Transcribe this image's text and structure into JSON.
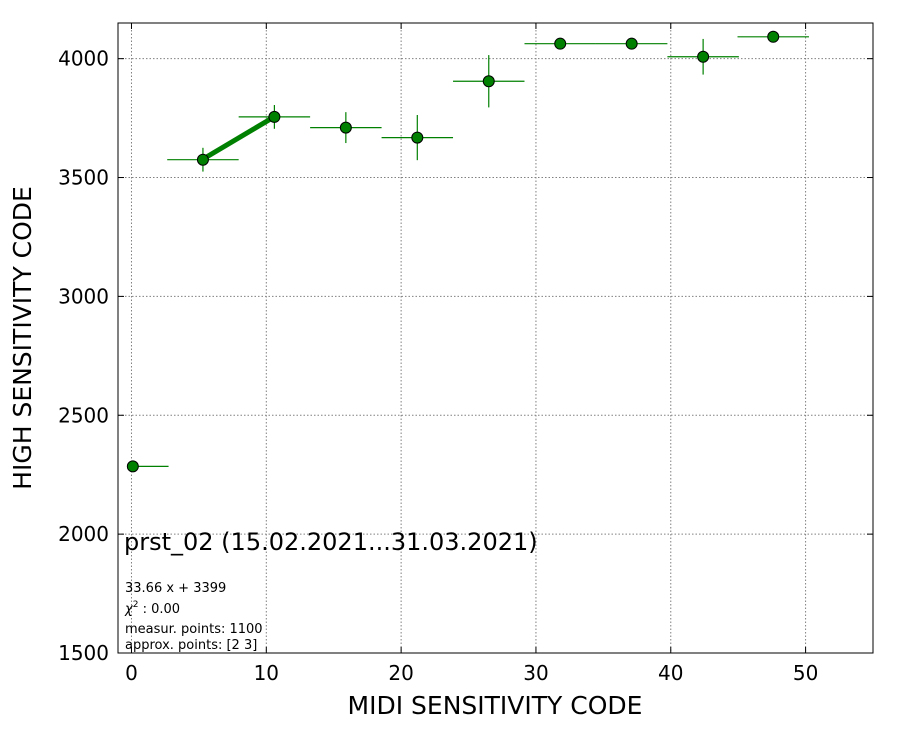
{
  "chart_data": {
    "type": "scatter",
    "xlabel": "MIDI SENSITIVITY CODE",
    "ylabel": "HIGH SENSITIVITY CODE",
    "xlim": [
      -1,
      55
    ],
    "ylim": [
      1500,
      4150
    ],
    "xticks": [
      0,
      10,
      20,
      30,
      40,
      50
    ],
    "yticks": [
      1500,
      2000,
      2500,
      3000,
      3500,
      4000
    ],
    "grid": true,
    "points": [
      {
        "x": 0.1,
        "y": 2285,
        "xerr_left": 0,
        "xerr_right": 2.65,
        "yerr": 0
      },
      {
        "x": 5.3,
        "y": 3575,
        "xerr_left": 2.65,
        "xerr_right": 2.65,
        "yerr": 50
      },
      {
        "x": 10.6,
        "y": 3755,
        "xerr_left": 2.65,
        "xerr_right": 2.65,
        "yerr": 50
      },
      {
        "x": 15.9,
        "y": 3710,
        "xerr_left": 2.65,
        "xerr_right": 2.65,
        "yerr": 65
      },
      {
        "x": 21.2,
        "y": 3668,
        "xerr_left": 2.65,
        "xerr_right": 2.65,
        "yerr": 95
      },
      {
        "x": 26.5,
        "y": 3905,
        "xerr_left": 2.65,
        "xerr_right": 2.65,
        "yerr": 110
      },
      {
        "x": 31.8,
        "y": 4063,
        "xerr_left": 2.65,
        "xerr_right": 2.65,
        "yerr": 0
      },
      {
        "x": 37.1,
        "y": 4063,
        "xerr_left": 2.65,
        "xerr_right": 2.65,
        "yerr": 0
      },
      {
        "x": 42.4,
        "y": 4008,
        "xerr_left": 2.65,
        "xerr_right": 2.65,
        "yerr": 75
      },
      {
        "x": 47.6,
        "y": 4092,
        "xerr_left": 2.65,
        "xerr_right": 2.65,
        "yerr": 0
      }
    ],
    "fit": {
      "equation": "33.66 x + 3399",
      "x_start": 5.3,
      "x_end": 10.6,
      "slope": 33.66,
      "intercept": 3399
    },
    "colors": {
      "marker_fill": "#008000",
      "marker_edge": "#000000",
      "errorbar": "#008000",
      "fit_line": "#008000",
      "grid": "#808080"
    }
  },
  "annotations": {
    "title": "prst_02 (15.02.2021...31.03.2021)",
    "fit_equation": "33.66 x + 3399",
    "chi2_symbol": "χ",
    "chi2_sup": "2",
    "chi2_value": " : 0.00",
    "measur_points": "measur. points: 1100",
    "approx_points": "approx. points: [2 3]"
  }
}
